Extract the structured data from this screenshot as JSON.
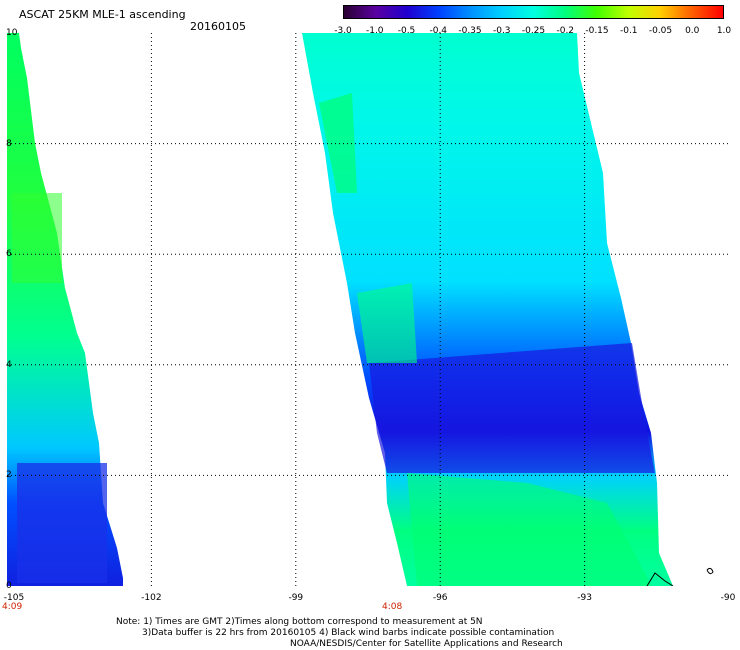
{
  "header": {
    "title": "ASCAT 25KM MLE-1 ascending",
    "date": "20160105"
  },
  "colorbar": {
    "labels": [
      "-3.0",
      "-1.0",
      "-0.5",
      "-0.4",
      "-0.35",
      "-0.3",
      "-0.25",
      "-0.2",
      "-0.15",
      "-0.1",
      "-0.05",
      "0.0",
      "1.0"
    ],
    "colors": [
      "#2a0030",
      "#5a00a0",
      "#2000d0",
      "#0040ff",
      "#0090ff",
      "#00d0ff",
      "#00ffe0",
      "#00ff80",
      "#40ff00",
      "#c0ff00",
      "#ffd000",
      "#ff6000",
      "#ff0000"
    ]
  },
  "axes": {
    "y_ticks": [
      "10",
      "8",
      "6",
      "4",
      "2",
      "0"
    ],
    "x_ticks": [
      "-105",
      "-102",
      "-99",
      "-96",
      "-93",
      "-90"
    ]
  },
  "swath_times": [
    "4:09",
    "4:08"
  ],
  "notes": [
    "Note: 1) Times are GMT 2)Times along bottom correspond to measurement at 5N",
    "3)Data buffer is 22 hrs from 20160105 4) Black wind barbs indicate possible contamination",
    "NOAA/NESDIS/Center for Satellite Applications and Research"
  ]
}
